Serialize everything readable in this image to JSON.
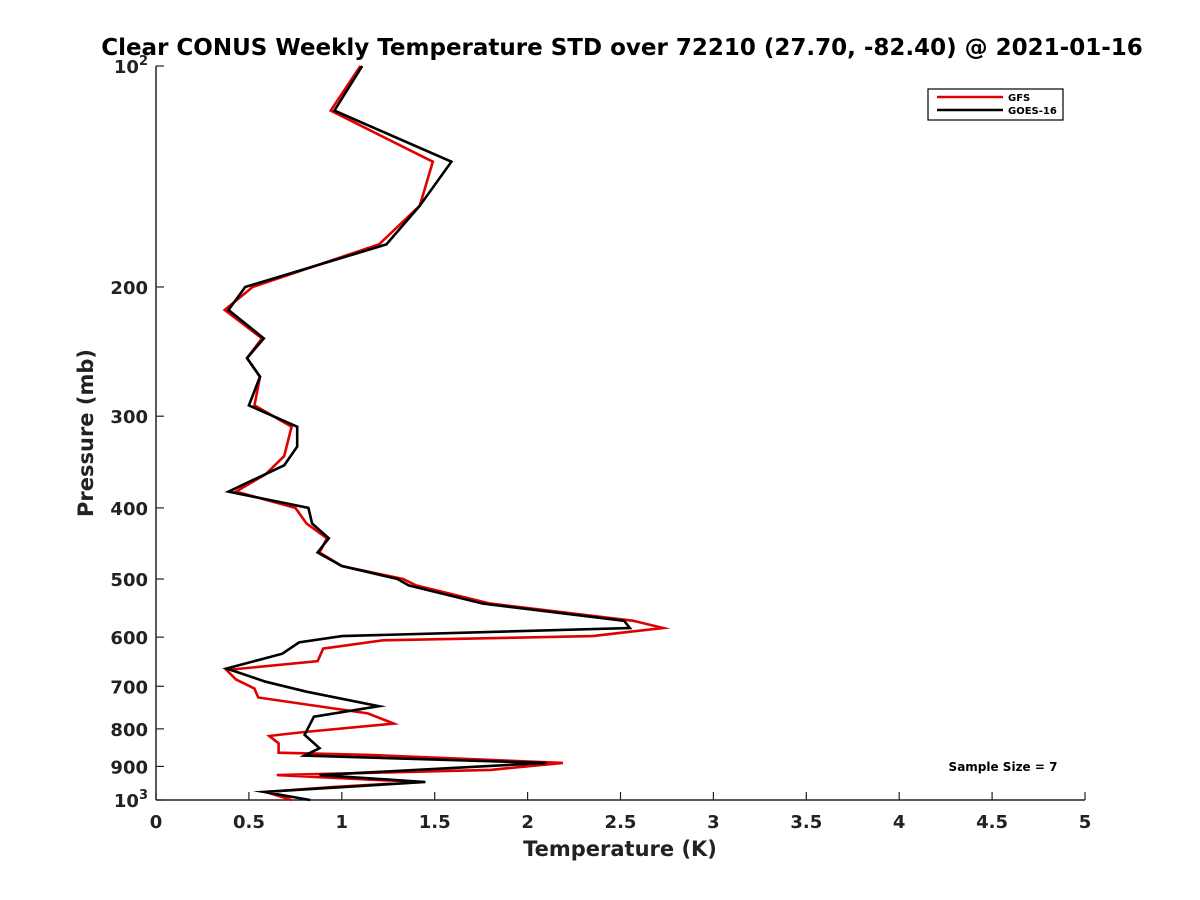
{
  "chart_data": {
    "type": "line",
    "title": "Clear CONUS Weekly Temperature STD over 72210 (27.70, -82.40) @ 2021-01-16",
    "xlabel": "Temperature (K)",
    "ylabel": "Pressure (mb)",
    "xlim": [
      0,
      5
    ],
    "ylim": [
      100,
      1000
    ],
    "y_scale": "log",
    "y_reversed": true,
    "x_ticks": [
      {
        "value": 0,
        "label": "0"
      },
      {
        "value": 0.5,
        "label": "0.5"
      },
      {
        "value": 1,
        "label": "1"
      },
      {
        "value": 1.5,
        "label": "1.5"
      },
      {
        "value": 2,
        "label": "2"
      },
      {
        "value": 2.5,
        "label": "2.5"
      },
      {
        "value": 3,
        "label": "3"
      },
      {
        "value": 3.5,
        "label": "3.5"
      },
      {
        "value": 4,
        "label": "4"
      },
      {
        "value": 4.5,
        "label": "4.5"
      },
      {
        "value": 5,
        "label": "5"
      }
    ],
    "y_ticks": [
      {
        "value": 100,
        "base": "10",
        "exp": "2"
      },
      {
        "value": 200,
        "label": "200"
      },
      {
        "value": 300,
        "label": "300"
      },
      {
        "value": 400,
        "label": "400"
      },
      {
        "value": 500,
        "label": "500"
      },
      {
        "value": 600,
        "label": "600"
      },
      {
        "value": 700,
        "label": "700"
      },
      {
        "value": 800,
        "label": "800"
      },
      {
        "value": 900,
        "label": "900"
      },
      {
        "value": 1000,
        "base": "10",
        "exp": "3"
      }
    ],
    "grid": false,
    "legend_position": "top-right",
    "series": [
      {
        "name": "GFS",
        "color": "#e00000",
        "points": [
          [
            1.1,
            100
          ],
          [
            0.94,
            115
          ],
          [
            1.49,
            135
          ],
          [
            1.42,
            155
          ],
          [
            1.2,
            175
          ],
          [
            0.52,
            200
          ],
          [
            0.37,
            215
          ],
          [
            0.57,
            235
          ],
          [
            0.49,
            250
          ],
          [
            0.56,
            265
          ],
          [
            0.53,
            290
          ],
          [
            0.73,
            310
          ],
          [
            0.69,
            340
          ],
          [
            0.59,
            360
          ],
          [
            0.43,
            380
          ],
          [
            0.75,
            400
          ],
          [
            0.81,
            420
          ],
          [
            0.92,
            440
          ],
          [
            0.88,
            460
          ],
          [
            1.0,
            480
          ],
          [
            1.33,
            500
          ],
          [
            1.4,
            510
          ],
          [
            1.8,
            540
          ],
          [
            2.57,
            570
          ],
          [
            2.73,
            583
          ],
          [
            2.35,
            598
          ],
          [
            1.22,
            606
          ],
          [
            0.9,
            622
          ],
          [
            0.87,
            647
          ],
          [
            0.38,
            665
          ],
          [
            0.43,
            685
          ],
          [
            0.53,
            705
          ],
          [
            0.55,
            725
          ],
          [
            1.14,
            762
          ],
          [
            1.28,
            787
          ],
          [
            0.8,
            808
          ],
          [
            0.7,
            813
          ],
          [
            0.61,
            818
          ],
          [
            0.66,
            837
          ],
          [
            0.66,
            862
          ],
          [
            1.15,
            868
          ],
          [
            2.19,
            890
          ],
          [
            1.8,
            910
          ],
          [
            0.65,
            925
          ],
          [
            1.42,
            945
          ],
          [
            0.95,
            960
          ],
          [
            0.59,
            975
          ],
          [
            0.73,
            1000
          ]
        ]
      },
      {
        "name": "GOES-16",
        "color": "#000000",
        "points": [
          [
            1.11,
            100
          ],
          [
            0.96,
            115
          ],
          [
            1.59,
            135
          ],
          [
            1.42,
            155
          ],
          [
            1.24,
            175
          ],
          [
            0.48,
            200
          ],
          [
            0.39,
            215
          ],
          [
            0.58,
            235
          ],
          [
            0.49,
            250
          ],
          [
            0.56,
            265
          ],
          [
            0.5,
            290
          ],
          [
            0.76,
            310
          ],
          [
            0.76,
            330
          ],
          [
            0.69,
            350
          ],
          [
            0.39,
            380
          ],
          [
            0.82,
            400
          ],
          [
            0.84,
            420
          ],
          [
            0.93,
            440
          ],
          [
            0.87,
            460
          ],
          [
            1.0,
            480
          ],
          [
            1.3,
            500
          ],
          [
            1.36,
            510
          ],
          [
            1.76,
            540
          ],
          [
            2.52,
            570
          ],
          [
            2.55,
            583
          ],
          [
            1.0,
            598
          ],
          [
            0.77,
            610
          ],
          [
            0.68,
            632
          ],
          [
            0.38,
            662
          ],
          [
            0.59,
            690
          ],
          [
            0.81,
            712
          ],
          [
            1.2,
            745
          ],
          [
            0.85,
            770
          ],
          [
            0.8,
            815
          ],
          [
            0.88,
            850
          ],
          [
            0.8,
            870
          ],
          [
            2.1,
            890
          ],
          [
            0.88,
            925
          ],
          [
            1.45,
            945
          ],
          [
            0.58,
            975
          ],
          [
            0.83,
            1000
          ]
        ]
      }
    ],
    "annotations": [
      {
        "text": "Sample Size = 7",
        "position": "bottom-right"
      }
    ]
  }
}
